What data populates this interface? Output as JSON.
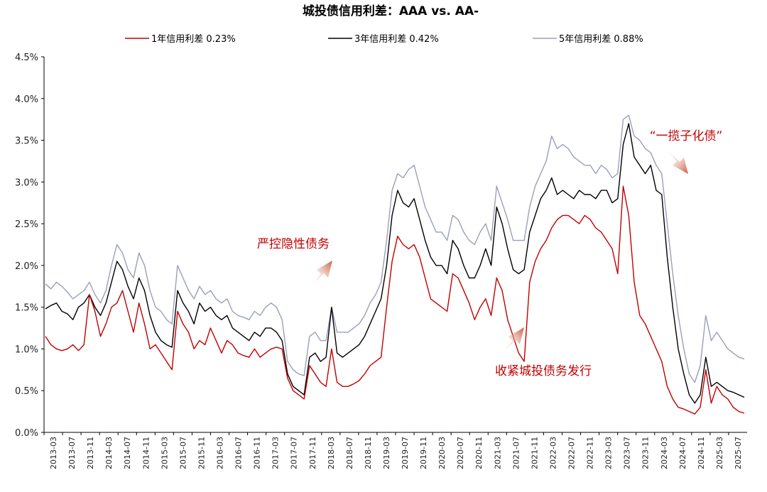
{
  "chart_data": {
    "type": "line",
    "title": "城投债信用利差：AAA vs. AA-",
    "xlabel": "",
    "ylabel": "",
    "ylim": [
      0,
      4.5
    ],
    "y_ticks": [
      "0.0%",
      "0.5%",
      "1.0%",
      "1.5%",
      "2.0%",
      "2.5%",
      "3.0%",
      "3.5%",
      "4.0%",
      "4.5%"
    ],
    "x_ticks": [
      "2013-03",
      "2013-07",
      "2013-11",
      "2014-03",
      "2014-07",
      "2014-11",
      "2015-03",
      "2015-07",
      "2015-11",
      "2016-03",
      "2016-07",
      "2016-11",
      "2017-03",
      "2017-07",
      "2017-11",
      "2018-03",
      "2018-07",
      "2018-11",
      "2019-03",
      "2019-07",
      "2019-11",
      "2020-03",
      "2020-07",
      "2020-11",
      "2021-03",
      "2021-07",
      "2021-11",
      "2022-03",
      "2022-07",
      "2022-11",
      "2023-03",
      "2023-07",
      "2023-11",
      "2024-03",
      "2024-07",
      "2024-11",
      "2025-03",
      "2025-07"
    ],
    "legend_position": "top",
    "grid": false,
    "series": [
      {
        "name": "1年信用利差",
        "latest_label": "0.23%",
        "color": "#c00000",
        "values": [
          1.15,
          1.05,
          1.0,
          0.98,
          1.0,
          1.05,
          0.98,
          1.05,
          1.65,
          1.45,
          1.15,
          1.3,
          1.5,
          1.55,
          1.7,
          1.45,
          1.2,
          1.55,
          1.3,
          1.0,
          1.05,
          0.95,
          0.85,
          0.75,
          1.45,
          1.3,
          1.2,
          1.0,
          1.1,
          1.05,
          1.25,
          1.1,
          0.95,
          1.1,
          1.05,
          0.95,
          0.92,
          0.9,
          1.0,
          0.9,
          0.95,
          1.0,
          1.02,
          1.0,
          0.65,
          0.5,
          0.45,
          0.4,
          0.8,
          0.7,
          0.6,
          0.55,
          1.0,
          0.6,
          0.55,
          0.55,
          0.58,
          0.62,
          0.7,
          0.8,
          0.85,
          0.9,
          1.5,
          2.05,
          2.35,
          2.25,
          2.2,
          2.25,
          2.1,
          1.85,
          1.6,
          1.55,
          1.5,
          1.45,
          1.9,
          1.85,
          1.7,
          1.55,
          1.35,
          1.5,
          1.6,
          1.4,
          1.85,
          1.7,
          1.35,
          1.15,
          0.95,
          0.85,
          1.8,
          2.05,
          2.2,
          2.3,
          2.45,
          2.55,
          2.6,
          2.6,
          2.55,
          2.5,
          2.6,
          2.55,
          2.45,
          2.4,
          2.3,
          2.2,
          1.9,
          2.95,
          2.6,
          1.8,
          1.4,
          1.3,
          1.15,
          1.0,
          0.85,
          0.55,
          0.4,
          0.3,
          0.28,
          0.25,
          0.22,
          0.3,
          0.75,
          0.35,
          0.55,
          0.45,
          0.4,
          0.3,
          0.25,
          0.23
        ]
      },
      {
        "name": "3年信用利差",
        "latest_label": "0.42%",
        "color": "#000000",
        "values": [
          1.48,
          1.52,
          1.55,
          1.45,
          1.42,
          1.35,
          1.5,
          1.55,
          1.65,
          1.5,
          1.4,
          1.55,
          1.8,
          2.05,
          1.95,
          1.75,
          1.6,
          1.85,
          1.7,
          1.4,
          1.2,
          1.1,
          1.05,
          1.02,
          1.7,
          1.55,
          1.45,
          1.3,
          1.55,
          1.45,
          1.5,
          1.4,
          1.35,
          1.4,
          1.25,
          1.2,
          1.15,
          1.1,
          1.2,
          1.15,
          1.25,
          1.25,
          1.2,
          1.1,
          0.7,
          0.55,
          0.5,
          0.45,
          0.9,
          0.95,
          0.85,
          0.9,
          1.5,
          0.95,
          0.9,
          0.95,
          1.0,
          1.05,
          1.15,
          1.3,
          1.45,
          1.6,
          2.0,
          2.6,
          2.9,
          2.75,
          2.7,
          2.8,
          2.55,
          2.3,
          2.1,
          2.0,
          2.0,
          1.9,
          2.3,
          2.2,
          2.0,
          1.85,
          1.85,
          2.0,
          2.2,
          2.0,
          2.7,
          2.5,
          2.2,
          1.95,
          1.9,
          1.95,
          2.4,
          2.6,
          2.8,
          2.9,
          3.05,
          2.85,
          2.9,
          2.85,
          2.8,
          2.9,
          2.85,
          2.85,
          2.8,
          2.9,
          2.9,
          2.75,
          2.8,
          3.45,
          3.7,
          3.3,
          3.2,
          3.1,
          3.2,
          2.9,
          2.85,
          2.1,
          1.5,
          1.0,
          0.7,
          0.45,
          0.35,
          0.45,
          0.9,
          0.55,
          0.6,
          0.55,
          0.5,
          0.48,
          0.45,
          0.42
        ]
      },
      {
        "name": "5年信用利差",
        "latest_label": "0.88%",
        "color": "#9a9fb8",
        "values": [
          1.78,
          1.72,
          1.8,
          1.75,
          1.68,
          1.6,
          1.65,
          1.7,
          1.8,
          1.65,
          1.55,
          1.7,
          2.0,
          2.25,
          2.15,
          1.95,
          1.85,
          2.15,
          2.0,
          1.7,
          1.5,
          1.45,
          1.35,
          1.3,
          2.0,
          1.85,
          1.7,
          1.6,
          1.75,
          1.65,
          1.7,
          1.6,
          1.55,
          1.6,
          1.45,
          1.4,
          1.38,
          1.35,
          1.45,
          1.4,
          1.5,
          1.55,
          1.5,
          1.35,
          0.85,
          0.75,
          0.7,
          0.68,
          1.15,
          1.2,
          1.1,
          1.1,
          1.5,
          1.2,
          1.2,
          1.2,
          1.25,
          1.3,
          1.4,
          1.55,
          1.65,
          1.8,
          2.3,
          2.9,
          3.1,
          3.05,
          3.15,
          3.2,
          2.95,
          2.7,
          2.55,
          2.4,
          2.4,
          2.3,
          2.6,
          2.55,
          2.4,
          2.3,
          2.25,
          2.4,
          2.5,
          2.3,
          2.95,
          2.75,
          2.55,
          2.3,
          2.3,
          2.3,
          2.7,
          2.95,
          3.1,
          3.25,
          3.55,
          3.4,
          3.45,
          3.4,
          3.3,
          3.25,
          3.2,
          3.2,
          3.1,
          3.2,
          3.15,
          3.05,
          3.1,
          3.75,
          3.8,
          3.55,
          3.5,
          3.4,
          3.35,
          3.2,
          3.1,
          2.5,
          1.9,
          1.4,
          1.0,
          0.7,
          0.6,
          0.8,
          1.4,
          1.1,
          1.2,
          1.1,
          1.0,
          0.95,
          0.9,
          0.88
        ]
      }
    ],
    "annotations": [
      {
        "text": "严控隐性债务",
        "color": "#c00000"
      },
      {
        "text": "收紧城投债务发行",
        "color": "#c00000"
      },
      {
        "text": "“一揽子化债”",
        "color": "#c00000"
      }
    ]
  }
}
